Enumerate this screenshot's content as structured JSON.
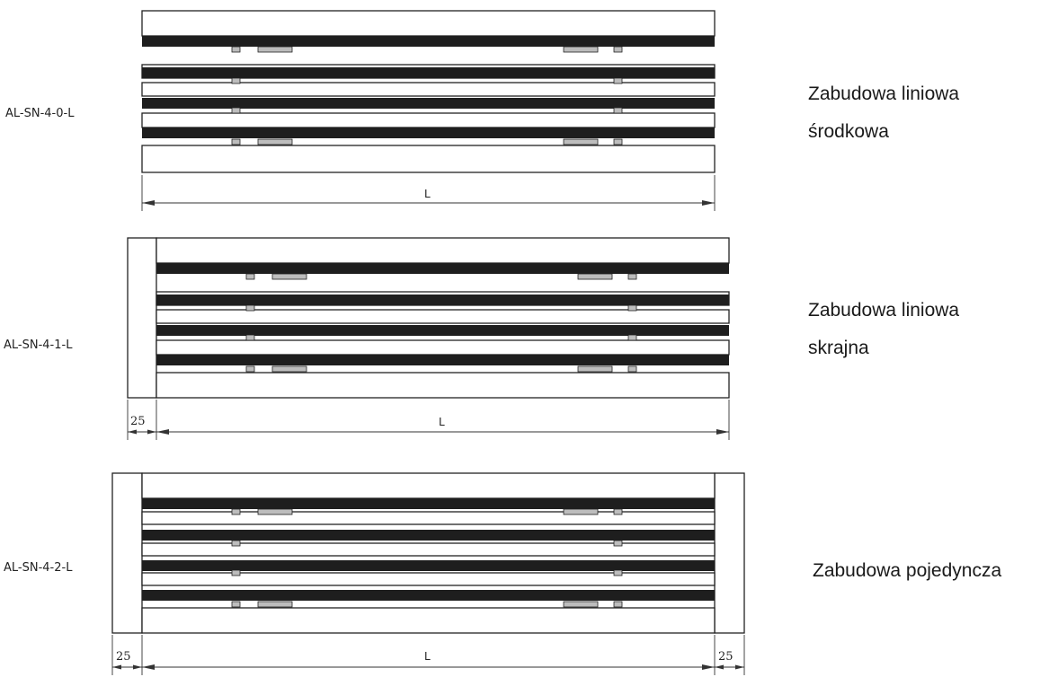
{
  "variants": [
    {
      "code": "AL-SN-4-0-L",
      "description_lines": [
        "Zabudowa liniowa",
        "środkowa"
      ],
      "dims": {
        "length": "L",
        "left_flange": "",
        "right_flange": ""
      }
    },
    {
      "code": "AL-SN-4-1-L",
      "description_lines": [
        "Zabudowa liniowa",
        "skrajna"
      ],
      "dims": {
        "length": "L",
        "left_flange": "25",
        "right_flange": ""
      }
    },
    {
      "code": "AL-SN-4-2-L",
      "description_lines": [
        "Zabudowa pojedyncza"
      ],
      "dims": {
        "length": "L",
        "left_flange": "25",
        "right_flange": "25"
      }
    }
  ],
  "colors": {
    "line": "#222222",
    "bar": "#1e1e1e",
    "clip": "#bdbdbd"
  }
}
